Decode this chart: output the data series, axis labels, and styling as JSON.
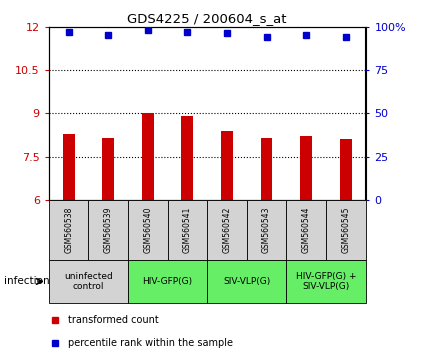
{
  "title": "GDS4225 / 200604_s_at",
  "samples": [
    "GSM560538",
    "GSM560539",
    "GSM560540",
    "GSM560541",
    "GSM560542",
    "GSM560543",
    "GSM560544",
    "GSM560545"
  ],
  "bar_values": [
    8.3,
    8.15,
    9.0,
    8.9,
    8.4,
    8.15,
    8.2,
    8.1
  ],
  "dot_values": [
    97,
    95,
    98,
    97,
    96,
    94,
    95,
    94
  ],
  "ylim_left": [
    6,
    12
  ],
  "ylim_right": [
    0,
    100
  ],
  "yticks_left": [
    6,
    7.5,
    9,
    10.5,
    12
  ],
  "yticks_right": [
    0,
    25,
    50,
    75,
    100
  ],
  "bar_color": "#cc0000",
  "dot_color": "#0000cc",
  "bar_bottom": 6,
  "groups": [
    {
      "label": "uninfected\ncontrol",
      "start": 0,
      "end": 2,
      "color": "#d3d3d3"
    },
    {
      "label": "HIV-GFP(G)",
      "start": 2,
      "end": 4,
      "color": "#66ee66"
    },
    {
      "label": "SIV-VLP(G)",
      "start": 4,
      "end": 6,
      "color": "#66ee66"
    },
    {
      "label": "HIV-GFP(G) +\nSIV-VLP(G)",
      "start": 6,
      "end": 8,
      "color": "#66ee66"
    }
  ],
  "legend_items": [
    {
      "label": "transformed count",
      "color": "#cc0000"
    },
    {
      "label": "percentile rank within the sample",
      "color": "#0000cc"
    }
  ],
  "infection_label": "infection",
  "sample_box_color": "#d3d3d3"
}
